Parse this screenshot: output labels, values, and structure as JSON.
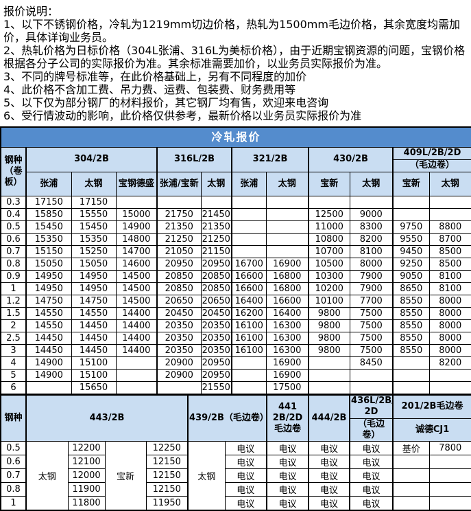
{
  "notes": {
    "title": "报价说明：",
    "lines": [
      "1、以下不锈钢价格，冷轧为1219mm切边价格，热轧为1500mm毛边价格，其余宽度均需加价，具体详询业务员。",
      "2、热轧价格为日标价格（304L张浦、316L为美标价格），由于近期宝钢资源的问题，宝钢价格根据各分子公司的实际报价为准。其余标准需要加价，以业务员实际报价为准。",
      "3、不同的牌号标准等，在此价格基础上，另有不同程度的加价",
      "4、此价格不含加工费、吊力费、运费、包装费、财务费用等",
      "5、以下仅为部分钢厂的材料报价，其它钢厂均有售，欢迎来电咨询",
      "6、受行情波动的影响，此价格仅供参考，最新价格以业务员实际报价为准"
    ]
  },
  "table1": {
    "title": "冷轧报价",
    "row_header": "钢种\n（卷\n板）",
    "groups": [
      {
        "label": "304/2B",
        "sub": [
          "张浦",
          "太钢",
          "宝钢德盛"
        ]
      },
      {
        "label": "316L/2B",
        "sub": [
          "张浦/宝新",
          "太钢"
        ]
      },
      {
        "label": "321/2B",
        "sub": [
          "张浦",
          "太钢"
        ]
      },
      {
        "label": "430/2B",
        "sub": [
          "宝新",
          "太钢"
        ]
      },
      {
        "label": "409L/2B/2D",
        "label2": "（毛边卷）",
        "sub": [
          "宝新",
          "太钢"
        ]
      }
    ],
    "rows": [
      {
        "t": "0.3",
        "v": [
          "17150",
          "17150",
          "",
          "",
          "",
          "",
          "",
          "",
          "",
          "",
          ""
        ]
      },
      {
        "t": "0.4",
        "v": [
          "15850",
          "15550",
          "15000",
          "21750",
          "21450",
          "",
          "",
          "12500",
          "9000",
          "",
          ""
        ]
      },
      {
        "t": "0.5",
        "v": [
          "15450",
          "15450",
          "14900",
          "21350",
          "21350",
          "",
          "",
          "11000",
          "8300",
          "9750",
          "8800"
        ]
      },
      {
        "t": "0.6",
        "v": [
          "15350",
          "15350",
          "14800",
          "21250",
          "21250",
          "",
          "",
          "10800",
          "8200",
          "9550",
          "8700"
        ]
      },
      {
        "t": "0.7",
        "v": [
          "15150",
          "15250",
          "14700",
          "21050",
          "21150",
          "",
          "",
          "10700",
          "8100",
          "9450",
          "8500"
        ]
      },
      {
        "t": "0.8",
        "v": [
          "15050",
          "15050",
          "14600",
          "20950",
          "20950",
          "16700",
          "16900",
          "10500",
          "8000",
          "9250",
          "8500"
        ]
      },
      {
        "t": "0.9",
        "v": [
          "14950",
          "14950",
          "14500",
          "20850",
          "20850",
          "16600",
          "16800",
          "10300",
          "7900",
          "9050",
          "8100"
        ]
      },
      {
        "t": "1",
        "v": [
          "14950",
          "14950",
          "14500",
          "20850",
          "20850",
          "16600",
          "16800",
          "10200",
          "7900",
          "8650",
          "8100"
        ]
      },
      {
        "t": "1.2",
        "v": [
          "14750",
          "14750",
          "14500",
          "20650",
          "20650",
          "16400",
          "16600",
          "10100",
          "7700",
          "8550",
          "8000"
        ]
      },
      {
        "t": "1.5",
        "v": [
          "14550",
          "14550",
          "14400",
          "20450",
          "20450",
          "16200",
          "16400",
          "9800",
          "7500",
          "8550",
          "8000"
        ]
      },
      {
        "t": "2",
        "v": [
          "14550",
          "14450",
          "14400",
          "20350",
          "20350",
          "16100",
          "16300",
          "9800",
          "7500",
          "8550",
          "8000"
        ]
      },
      {
        "t": "2.5",
        "v": [
          "14450",
          "14450",
          "14400",
          "20350",
          "20350",
          "16100",
          "16300",
          "9800",
          "7500",
          "8550",
          "8000"
        ]
      },
      {
        "t": "3",
        "v": [
          "14450",
          "14450",
          "14400",
          "20350",
          "20350",
          "16100",
          "16300",
          "9800",
          "7500",
          "8550",
          "8000"
        ]
      },
      {
        "t": "4",
        "v": [
          "14900",
          "15100",
          "",
          "20900",
          "20950",
          "",
          "16900",
          "",
          "8450",
          "",
          "8200"
        ]
      },
      {
        "t": "5",
        "v": [
          "14900",
          "15100",
          "",
          "20900",
          "20950",
          "",
          "16900",
          "",
          "",
          "",
          ""
        ]
      },
      {
        "t": "6",
        "v": [
          "",
          "15650",
          "",
          "",
          "21550",
          "",
          "17500",
          "",
          "",
          "",
          ""
        ]
      }
    ]
  },
  "table2": {
    "row_header": "钢种",
    "vendors": [
      "太钢",
      "宝新",
      "太钢"
    ],
    "groups": [
      {
        "label": "443/2B"
      },
      {
        "label": "439/2B（毛边卷）"
      },
      {
        "label": "441\n2B/2D\n毛边卷"
      },
      {
        "label": "444/2B"
      },
      {
        "label": "436L/2B/\n2D",
        "label2": "（毛边\n卷）"
      },
      {
        "label": "201/2B毛边卷",
        "label2": "诚德CJ1"
      }
    ],
    "rows": [
      {
        "t": "0.5",
        "v": [
          "12200",
          "12250",
          "电议",
          "电议",
          "电议",
          "电议",
          "基价",
          "7800"
        ]
      },
      {
        "t": "0.6",
        "v": [
          "12100",
          "12150",
          "电议",
          "电议",
          "电议",
          "电议",
          "",
          ""
        ]
      },
      {
        "t": "0.7",
        "v": [
          "12000",
          "12150",
          "电议",
          "电议",
          "电议",
          "电议",
          "",
          ""
        ]
      },
      {
        "t": "0.8",
        "v": [
          "11900",
          "12150",
          "电议",
          "电议",
          "电议",
          "电议",
          "",
          ""
        ]
      },
      {
        "t": "1",
        "v": [
          "11800",
          "11950",
          "电议",
          "电议",
          "电议",
          "电议",
          "",
          ""
        ]
      }
    ]
  },
  "colors": {
    "title_bg": "#548ccd",
    "header_bg": "#c9ddf2",
    "border": "#000000",
    "title_text": "#ffffff"
  }
}
